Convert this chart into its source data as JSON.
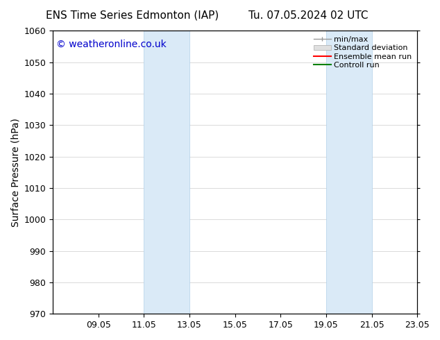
{
  "title_left": "ENS Time Series Edmonton (IAP)",
  "title_right": "Tu. 07.05.2024 02 UTC",
  "ylabel": "Surface Pressure (hPa)",
  "ylim": [
    970,
    1060
  ],
  "yticks": [
    970,
    980,
    990,
    1000,
    1010,
    1020,
    1030,
    1040,
    1050,
    1060
  ],
  "xticks": [
    "09.05",
    "11.05",
    "13.05",
    "15.05",
    "17.05",
    "19.05",
    "21.05",
    "23.05"
  ],
  "xtick_positions": [
    2,
    4,
    6,
    8,
    10,
    12,
    14,
    16
  ],
  "x_min": 0,
  "x_max": 16,
  "shaded_bands": [
    {
      "x_start": 4,
      "x_end": 6
    },
    {
      "x_start": 12,
      "x_end": 14
    }
  ],
  "shade_color": "#daeaf7",
  "shade_edge_color": "#b0cfe8",
  "watermark": "© weatheronline.co.uk",
  "watermark_color": "#0000cc",
  "legend_entries": [
    "min/max",
    "Standard deviation",
    "Ensemble mean run",
    "Controll run"
  ],
  "legend_colors_line": [
    "#999999",
    "#cccccc",
    "#ff0000",
    "#008000"
  ],
  "grid_color": "#cccccc",
  "background_color": "#ffffff",
  "title_fontsize": 11,
  "axis_label_fontsize": 10,
  "tick_fontsize": 9,
  "watermark_fontsize": 10,
  "legend_fontsize": 8
}
